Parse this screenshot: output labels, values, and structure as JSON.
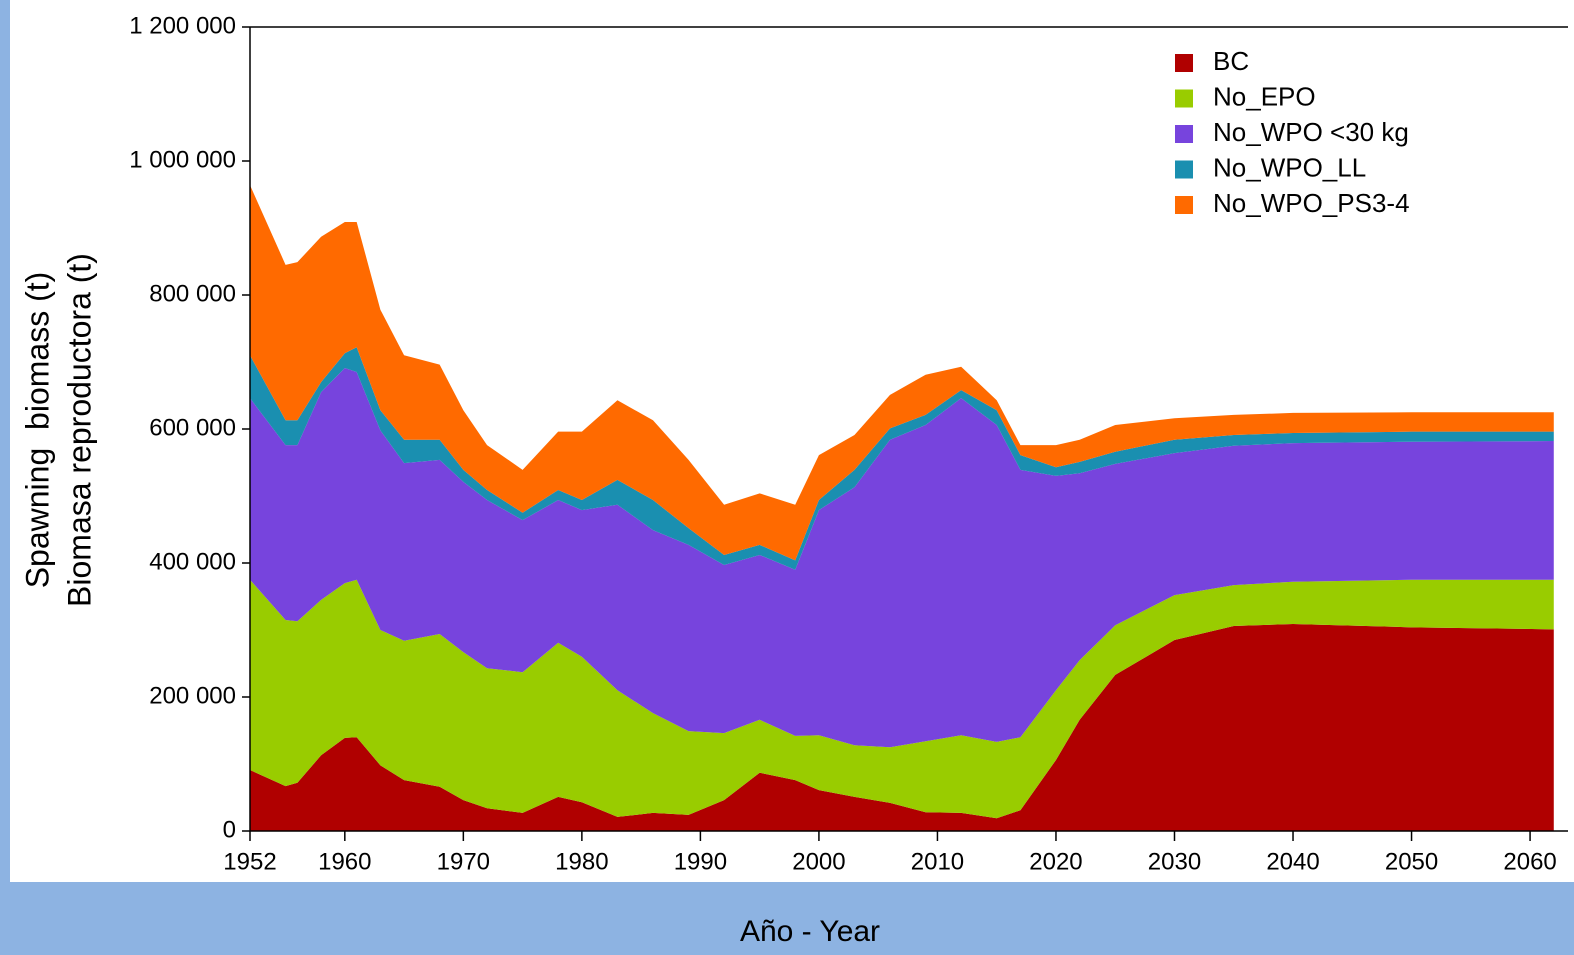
{
  "chart_data": {
    "type": "stacked_area",
    "xlabel": "Año - Year",
    "ylabel": [
      "Spawning  biomass (t)",
      "Biomasa reproductora (t)"
    ],
    "x": [
      1952,
      1955,
      1956,
      1958,
      1960,
      1961,
      1963,
      1965,
      1968,
      1970,
      1972,
      1975,
      1978,
      1980,
      1983,
      1986,
      1989,
      1992,
      1995,
      1998,
      2000,
      2003,
      2006,
      2009,
      2012,
      2015,
      2017,
      2020,
      2022,
      2025,
      2030,
      2035,
      2040,
      2050,
      2062
    ],
    "series": [
      {
        "name": "BC",
        "color": "#b00000",
        "values": [
          91000,
          67000,
          72000,
          113000,
          139000,
          140000,
          98000,
          76000,
          66000,
          46000,
          34000,
          27000,
          51000,
          43000,
          21000,
          27000,
          24000,
          46000,
          87000,
          76000,
          61000,
          51000,
          42000,
          28000,
          27000,
          19000,
          31000,
          106000,
          166000,
          233000,
          285000,
          306000,
          309000,
          304000,
          301000
        ]
      },
      {
        "name": "No_EPO",
        "color": "#99cc00",
        "values": [
          284000,
          248000,
          241000,
          232000,
          231000,
          235000,
          202000,
          208000,
          228000,
          221000,
          209000,
          210000,
          230000,
          217000,
          189000,
          149000,
          125000,
          100000,
          79000,
          66000,
          82000,
          77000,
          83000,
          106000,
          116000,
          114000,
          109000,
          104000,
          89000,
          74000,
          67000,
          61000,
          63000,
          71000,
          74000
        ]
      },
      {
        "name": "No_WPO <30 kg",
        "color": "#7744dd",
        "values": [
          271000,
          261000,
          263000,
          310000,
          321000,
          310000,
          298000,
          265000,
          260000,
          254000,
          251000,
          227000,
          213000,
          219000,
          277000,
          273000,
          278000,
          251000,
          246000,
          248000,
          336000,
          385000,
          459000,
          472000,
          503000,
          473000,
          399000,
          320000,
          279000,
          241000,
          212000,
          208000,
          207000,
          206000,
          207000
        ]
      },
      {
        "name": "No_WPO_LL",
        "color": "#1a8fb0",
        "values": [
          64000,
          37000,
          37000,
          15000,
          22000,
          37000,
          30000,
          35000,
          30000,
          18000,
          15000,
          11000,
          15000,
          15000,
          37000,
          45000,
          25000,
          15000,
          15000,
          14000,
          15000,
          26000,
          17000,
          15000,
          12000,
          22000,
          22000,
          13000,
          17000,
          18000,
          20000,
          16000,
          15000,
          15000,
          14000
        ]
      },
      {
        "name": "No_WPO_PS3-4",
        "color": "#ff6a00",
        "values": [
          254000,
          232000,
          236000,
          217000,
          196000,
          187000,
          150000,
          126000,
          112000,
          89000,
          67000,
          64000,
          87000,
          102000,
          119000,
          119000,
          102000,
          75000,
          77000,
          83000,
          67000,
          52000,
          50000,
          60000,
          35000,
          15000,
          15000,
          33000,
          33000,
          40000,
          32000,
          30000,
          30000,
          29000,
          29000
        ]
      }
    ],
    "xlim": [
      1952,
      2063.2
    ],
    "xticks": [
      1952,
      1960,
      1970,
      1980,
      1990,
      2000,
      2010,
      2020,
      2030,
      2040,
      2050,
      2060
    ],
    "ylim": [
      0,
      1200000
    ],
    "yticks": [
      0,
      {
        "value": 200000,
        "label": "200 000"
      },
      {
        "value": 400000,
        "label": "400 000"
      },
      {
        "value": 600000,
        "label": "600 000"
      },
      {
        "value": 800000,
        "label": "800 000"
      },
      {
        "value": 1000000,
        "label": "1 000 000"
      },
      {
        "value": 1200000,
        "label": "1 200 000"
      }
    ],
    "legend": "upper right"
  }
}
